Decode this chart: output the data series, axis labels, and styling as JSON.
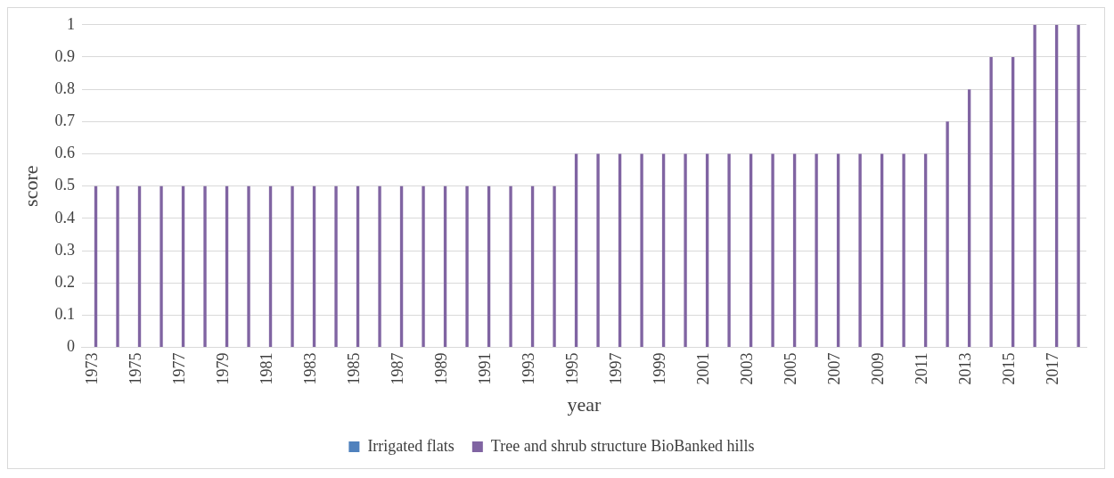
{
  "chart_data": {
    "type": "bar",
    "xlabel": "year",
    "ylabel": "score",
    "categories": [
      "1973",
      null,
      "1975",
      null,
      "1977",
      null,
      "1979",
      null,
      "1981",
      null,
      "1983",
      null,
      "1985",
      null,
      "1987",
      null,
      "1989",
      null,
      "1991",
      null,
      "1993",
      null,
      "1995",
      null,
      "1997",
      null,
      "1999",
      null,
      "2001",
      null,
      "2003",
      null,
      "2005",
      null,
      "2007",
      null,
      "2009",
      null,
      "2011",
      null,
      "2013",
      null,
      "2015",
      null,
      "2017",
      null
    ],
    "series": [
      {
        "name": "Irrigated flats",
        "color": "#4f81bd",
        "values": [
          0,
          0,
          0,
          0,
          0,
          0,
          0,
          0,
          0,
          0,
          0,
          0,
          0,
          0,
          0,
          0,
          0,
          0,
          0,
          0,
          0,
          0,
          0,
          0,
          0,
          0,
          0,
          0,
          0,
          0,
          0,
          0,
          0,
          0,
          0,
          0,
          0,
          0,
          0,
          0,
          0,
          0,
          0,
          0,
          0,
          0
        ]
      },
      {
        "name": "Tree and shrub structure BioBanked hills",
        "color": "#8064a2",
        "values": [
          0.5,
          0.5,
          0.5,
          0.5,
          0.5,
          0.5,
          0.5,
          0.5,
          0.5,
          0.5,
          0.5,
          0.5,
          0.5,
          0.5,
          0.5,
          0.5,
          0.5,
          0.5,
          0.5,
          0.5,
          0.5,
          0.5,
          0.6,
          0.6,
          0.6,
          0.6,
          0.6,
          0.6,
          0.6,
          0.6,
          0.6,
          0.6,
          0.6,
          0.6,
          0.6,
          0.6,
          0.6,
          0.6,
          0.6,
          0.7,
          0.8,
          0.9,
          0.9,
          1,
          1,
          1
        ]
      }
    ],
    "ylim": [
      0,
      1
    ],
    "yticks": [
      0,
      0.1,
      0.2,
      0.3,
      0.4,
      0.5,
      0.6,
      0.7,
      0.8,
      0.9,
      1
    ],
    "grid": "y",
    "legend": "bottom"
  }
}
